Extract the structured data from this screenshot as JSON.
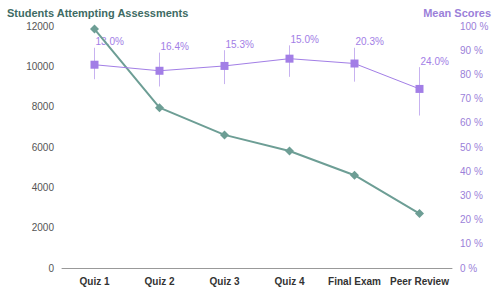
{
  "chart_data": {
    "type": "line",
    "categories": [
      "Quiz 1",
      "Quiz 2",
      "Quiz 3",
      "Quiz 4",
      "Final Exam",
      "Peer Review"
    ],
    "y_label": "Students Attempting Assessments",
    "y2_label": "Mean Scores",
    "ylim": [
      0,
      12000
    ],
    "yticks": [
      0,
      2000,
      4000,
      6000,
      8000,
      10000,
      12000
    ],
    "y2lim": [
      0,
      100
    ],
    "y2ticks": [
      {
        "value": 0,
        "label": "0 %"
      },
      {
        "value": 10,
        "label": "10 %"
      },
      {
        "value": 20,
        "label": "20 %"
      },
      {
        "value": 30,
        "label": "30 %"
      },
      {
        "value": 40,
        "label": "40 %"
      },
      {
        "value": 50,
        "label": "50 %"
      },
      {
        "value": 60,
        "label": "60 %"
      },
      {
        "value": 70,
        "label": "70 %"
      },
      {
        "value": 80,
        "label": "80 %"
      },
      {
        "value": 90,
        "label": "90 %"
      },
      {
        "value": 100,
        "label": "100 %"
      }
    ],
    "grid": false,
    "series": [
      {
        "type": "line",
        "color": "#6d9e95",
        "marker": "diamond",
        "line_style": "solid",
        "values": [
          11850,
          7950,
          6600,
          5800,
          4600,
          2700
        ]
      },
      {
        "type": "line",
        "axis": "y2",
        "color": "#a27ee6",
        "marker": "square",
        "line_style": "solid",
        "values": [
          84,
          81.5,
          83.5,
          86.5,
          84.5,
          74
        ],
        "error_bars": [
          [
            78,
            91
          ],
          [
            75,
            89
          ],
          [
            76,
            90
          ],
          [
            79,
            92
          ],
          [
            77,
            91
          ],
          [
            63,
            83
          ]
        ],
        "error_labels": [
          "13.0%",
          "16.4%",
          "15.3%",
          "15.0%",
          "20.3%",
          "24.0%"
        ]
      }
    ]
  }
}
